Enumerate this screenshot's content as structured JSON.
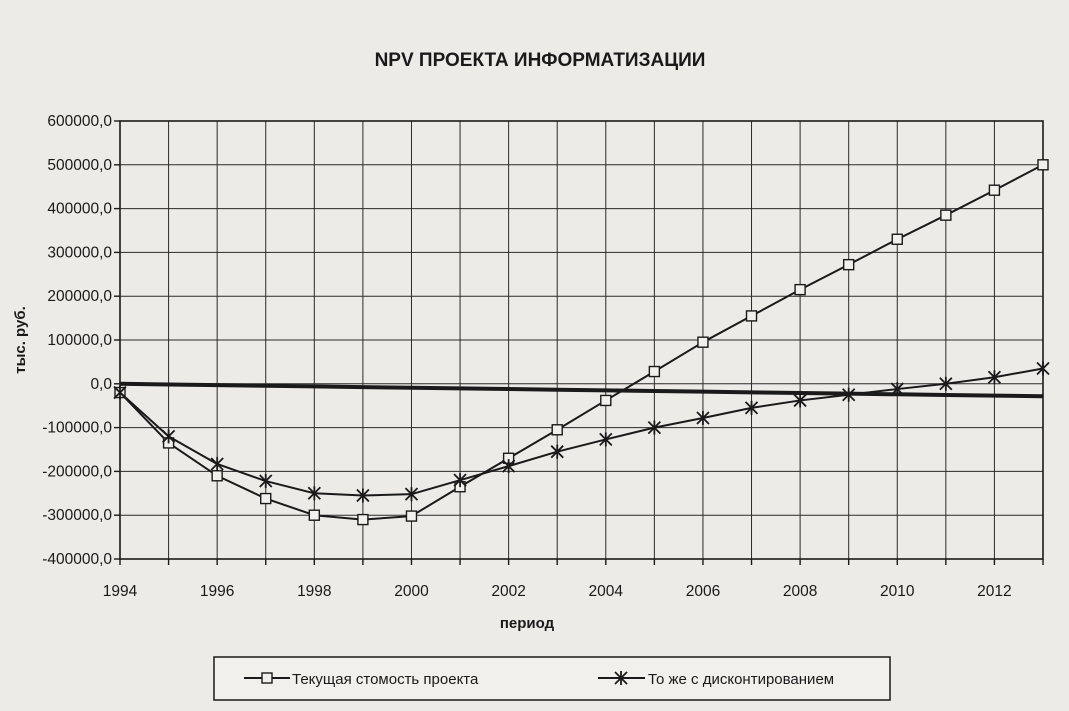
{
  "chart_data": {
    "type": "line",
    "title": "NPV ПРОЕКТА ИНФОРМАТИЗАЦИИ",
    "xlabel": "период",
    "ylabel": "тыс. руб.",
    "x": [
      1994,
      1995,
      1996,
      1997,
      1998,
      1999,
      2000,
      2001,
      2002,
      2003,
      2004,
      2005,
      2006,
      2007,
      2008,
      2009,
      2010,
      2011,
      2012,
      2013
    ],
    "x_tick_labels": [
      "1994",
      "1996",
      "1998",
      "2000",
      "2002",
      "2004",
      "2006",
      "2008",
      "2010",
      "2012"
    ],
    "x_tick_values": [
      1994,
      1996,
      1998,
      2000,
      2002,
      2004,
      2006,
      2008,
      2010,
      2012
    ],
    "ylim": [
      -400000,
      600000
    ],
    "y_tick_values": [
      600000,
      500000,
      400000,
      300000,
      200000,
      100000,
      0,
      -100000,
      -200000,
      -300000,
      -400000
    ],
    "y_tick_labels": [
      "600000,0",
      "500000,0",
      "400000,0",
      "300000,0",
      "200000,0",
      "100000,0",
      "0,0",
      "-100000,0",
      "-200000,0",
      "-300000,0",
      "-400000,0"
    ],
    "grid": true,
    "legend_position": "bottom",
    "series": [
      {
        "name": "Текущая стомость проекта",
        "marker": "square",
        "values": [
          -20000,
          -135000,
          -210000,
          -262000,
          -300000,
          -310000,
          -302000,
          -235000,
          -170000,
          -105000,
          -38000,
          28000,
          95000,
          155000,
          215000,
          272000,
          330000,
          385000,
          442000,
          500000
        ]
      },
      {
        "name": "То же с дисконтированием",
        "marker": "star",
        "values": [
          -20000,
          -120000,
          -183000,
          -222000,
          -250000,
          -255000,
          -252000,
          -220000,
          -188000,
          -155000,
          -127000,
          -100000,
          -78000,
          -55000,
          -38000,
          -25000,
          -12000,
          0,
          15000,
          35000
        ]
      }
    ],
    "baseline": {
      "values": [
        0,
        -1500,
        -3000,
        -4500,
        -6000,
        -7500,
        -9000,
        -10500,
        -12000,
        -13500,
        -15000,
        -16500,
        -18000,
        -19500,
        -21000,
        -22500,
        -24000,
        -25500,
        -27000,
        -28500
      ]
    }
  },
  "colors": {
    "background": "#ecebe7",
    "ink": "#1a1a1a",
    "grid": "#2a2a2a"
  }
}
